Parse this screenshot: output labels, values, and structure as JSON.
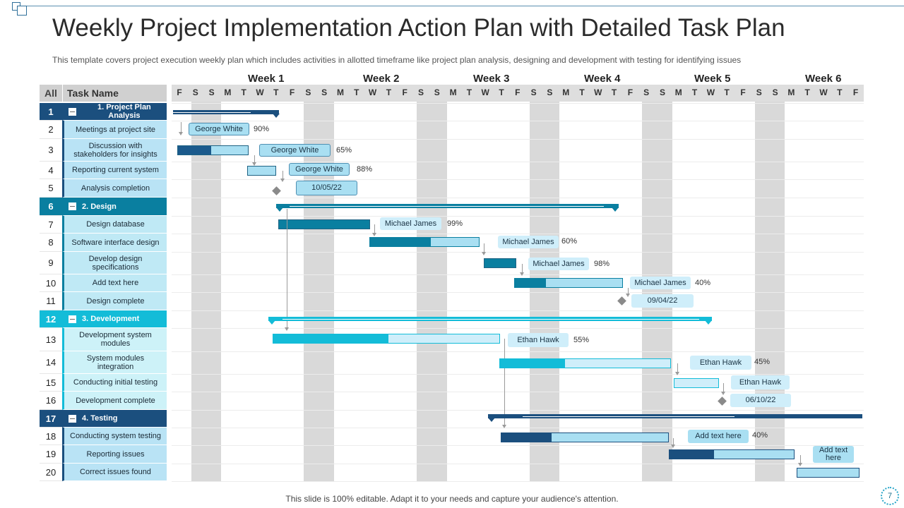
{
  "slide": {
    "title": "Weekly Project Implementation Action Plan with Detailed Task Plan",
    "subtitle": "This template covers project execution weekly plan which includes activities in allotted timeframe like project plan analysis, designing and development with testing for identifying issues",
    "footer": "This slide is 100% editable. Adapt it to your needs and capture your audience's attention.",
    "page_number": "7"
  },
  "header": {
    "all_label": "All",
    "task_name_label": "Task Name",
    "weeks": [
      "Week 1",
      "Week 2",
      "Week 3",
      "Week 4",
      "Week 5",
      "Week 6"
    ],
    "days": [
      "F",
      "S",
      "S",
      "M",
      "T",
      "W",
      "T",
      "F",
      "S",
      "S",
      "M",
      "T",
      "W",
      "T",
      "F",
      "S",
      "S",
      "M",
      "T",
      "W",
      "T",
      "F",
      "S",
      "S",
      "M",
      "T",
      "W",
      "T",
      "F",
      "S",
      "S",
      "M",
      "T",
      "W",
      "T",
      "F",
      "S",
      "S",
      "M",
      "T",
      "W",
      "T",
      "F"
    ]
  },
  "tasks": [
    {
      "num": "1",
      "name": "1. Project Plan Analysis",
      "group": true
    },
    {
      "num": "2",
      "name": "Meetings at project site",
      "group": false
    },
    {
      "num": "3",
      "name": "Discussion with stakeholders for insights",
      "group": false
    },
    {
      "num": "4",
      "name": "Reporting current system",
      "group": false
    },
    {
      "num": "5",
      "name": "Analysis completion",
      "group": false
    },
    {
      "num": "6",
      "name": "2. Design",
      "group": true
    },
    {
      "num": "7",
      "name": "Design database",
      "group": false
    },
    {
      "num": "8",
      "name": "Software interface design",
      "group": false
    },
    {
      "num": "9",
      "name": "Develop design specifications",
      "group": false
    },
    {
      "num": "10",
      "name": "Add text here",
      "group": false
    },
    {
      "num": "11",
      "name": "Design complete",
      "group": false
    },
    {
      "num": "12",
      "name": "3. Development",
      "group": true
    },
    {
      "num": "13",
      "name": "Development system modules",
      "group": false
    },
    {
      "num": "14",
      "name": "System modules integration",
      "group": false
    },
    {
      "num": "15",
      "name": "Conducting initial testing",
      "group": false
    },
    {
      "num": "16",
      "name": "Development complete",
      "group": false
    },
    {
      "num": "17",
      "name": "4. Testing",
      "group": true
    },
    {
      "num": "18",
      "name": "Conducting system testing",
      "group": false
    },
    {
      "num": "19",
      "name": "Reporting issues",
      "group": false
    },
    {
      "num": "20",
      "name": "Correct issues found",
      "group": false
    }
  ],
  "gantt_labels": {
    "r2": {
      "owner": "George White",
      "pct": "90%"
    },
    "r3": {
      "owner": "George White",
      "pct": "65%"
    },
    "r4": {
      "owner": "George White",
      "pct": "88%"
    },
    "r5": {
      "date": "10/05/22"
    },
    "r7": {
      "owner": "Michael James",
      "pct": "99%"
    },
    "r8": {
      "owner": "Michael James",
      "pct": "60%"
    },
    "r9": {
      "owner": "Michael James",
      "pct": "98%"
    },
    "r10": {
      "owner": "Michael James",
      "pct": "40%"
    },
    "r11": {
      "date": "09/04/22"
    },
    "r13": {
      "owner": "Ethan Hawk",
      "pct": "55%"
    },
    "r14": {
      "owner": "Ethan Hawk",
      "pct": "45%"
    },
    "r15": {
      "owner": "Ethan Hawk"
    },
    "r16": {
      "date": "06/10/22"
    },
    "r18": {
      "owner": "Add text here",
      "pct": "40%"
    },
    "r19": {
      "owner": "Add text here"
    }
  },
  "colors": {
    "navy": "#1b4f7e",
    "teal": "#0a7fa0",
    "cyan": "#13bcd8",
    "light": "#a9dff2",
    "pale": "#cfeefa",
    "weekend": "#d9d9d9"
  }
}
